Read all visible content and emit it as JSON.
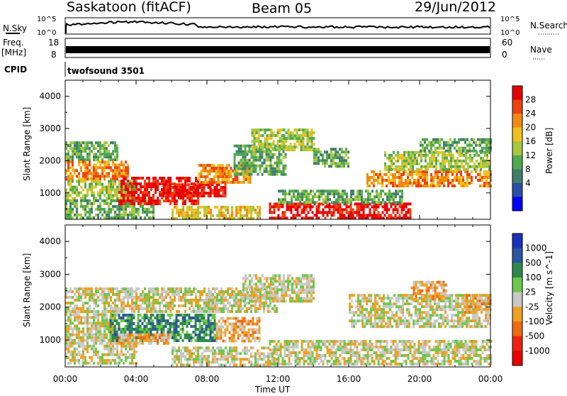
{
  "header": {
    "title": "Saskatoon (fitACF)",
    "beam": "Beam 05",
    "date": "29/Jun/2012"
  },
  "top_strips": {
    "nsky_label": "N.Sky",
    "nsky_ticks": [
      "10^5",
      "10^0"
    ],
    "nsearch_label": "N.Search",
    "nsearch_ticks": [
      "10^5",
      "10^0"
    ],
    "freq_label_line1": "Freq.",
    "freq_label_line2": "[MHz]",
    "freq_ticks": [
      "18",
      "8"
    ],
    "nave_label": "Nave",
    "nave_ticks": [
      "60",
      "0"
    ],
    "cpid_label": "CPID",
    "cpid_value": "twofsound 3501"
  },
  "chart_data": [
    {
      "type": "heatmap",
      "name": "power",
      "ylabel": "Slant Range [km]",
      "yticks": [
        1000,
        2000,
        3000,
        4000
      ],
      "ylim": [
        180,
        4500
      ],
      "xticks": [
        "00:00",
        "04:00",
        "08:00",
        "12:00",
        "16:00",
        "20:00",
        "00:00"
      ],
      "xlim_hours": [
        0,
        24
      ],
      "colorbar": {
        "label": "Power [dB]",
        "tick_labels": [
          "4",
          "8",
          "12",
          "16",
          "20",
          "24",
          "28"
        ],
        "colors": [
          "#0000ff",
          "#2a4fa8",
          "#3f7f6a",
          "#4faa4f",
          "#a8c83c",
          "#f0c020",
          "#f08a10",
          "#f04010",
          "#e80000"
        ]
      },
      "regions": [
        {
          "t0": 0.0,
          "t1": 3.0,
          "r0": 2000,
          "r1": 2600,
          "level": 3
        },
        {
          "t0": 0.0,
          "t1": 3.5,
          "r0": 1400,
          "r1": 2000,
          "level": 6
        },
        {
          "t0": 0.0,
          "t1": 4.0,
          "r0": 800,
          "r1": 1400,
          "level": 4
        },
        {
          "t0": 0.0,
          "t1": 5.0,
          "r0": 200,
          "r1": 800,
          "level": 3
        },
        {
          "t0": 3.0,
          "t1": 7.5,
          "r0": 700,
          "r1": 1500,
          "level": 8
        },
        {
          "t0": 5.5,
          "t1": 9.0,
          "r0": 900,
          "r1": 1300,
          "level": 8
        },
        {
          "t0": 7.5,
          "t1": 10.5,
          "r0": 1300,
          "r1": 1900,
          "level": 6
        },
        {
          "t0": 9.5,
          "t1": 12.5,
          "r0": 1600,
          "r1": 2500,
          "level": 3
        },
        {
          "t0": 10.5,
          "t1": 14.0,
          "r0": 2300,
          "r1": 3000,
          "level": 4
        },
        {
          "t0": 6.0,
          "t1": 11.0,
          "r0": 200,
          "r1": 600,
          "level": 5
        },
        {
          "t0": 11.5,
          "t1": 19.5,
          "r0": 200,
          "r1": 700,
          "level": 8
        },
        {
          "t0": 12.0,
          "t1": 19.0,
          "r0": 700,
          "r1": 1100,
          "level": 3
        },
        {
          "t0": 14.0,
          "t1": 16.0,
          "r0": 1800,
          "r1": 2400,
          "level": 3
        },
        {
          "t0": 17.0,
          "t1": 24.0,
          "r0": 1200,
          "r1": 1700,
          "level": 6
        },
        {
          "t0": 18.0,
          "t1": 24.0,
          "r0": 1700,
          "r1": 2300,
          "level": 4
        },
        {
          "t0": 20.0,
          "t1": 24.0,
          "r0": 2300,
          "r1": 2700,
          "level": 3
        }
      ]
    },
    {
      "type": "heatmap",
      "name": "velocity",
      "ylabel": "Slant Range [km]",
      "yticks": [
        1000,
        2000,
        3000,
        4000
      ],
      "ylim": [
        180,
        4500
      ],
      "xticks": [
        "00:00",
        "04:00",
        "08:00",
        "12:00",
        "16:00",
        "20:00",
        "00:00"
      ],
      "xlim_hours": [
        0,
        24
      ],
      "xlabel": "Time UT",
      "colorbar": {
        "label": "Velocity [m s^-1]",
        "tick_labels": [
          "1000",
          "500",
          "100",
          "25",
          "-25",
          "-100",
          "-500",
          "-1000"
        ],
        "colors": [
          "#1c30c0",
          "#2b55a0",
          "#2f8a4a",
          "#6cc84a",
          "#c8c8c8",
          "#f0a020",
          "#f06a10",
          "#f02010",
          "#e80000"
        ]
      },
      "regions": [
        {
          "t0": 0.0,
          "t1": 12.0,
          "r0": 1900,
          "r1": 2600,
          "level": 4
        },
        {
          "t0": 0.0,
          "t1": 3.0,
          "r0": 1200,
          "r1": 1900,
          "level": 4
        },
        {
          "t0": 0.0,
          "t1": 4.0,
          "r0": 300,
          "r1": 1200,
          "level": 4
        },
        {
          "t0": 2.5,
          "t1": 8.5,
          "r0": 1000,
          "r1": 1800,
          "level": 2
        },
        {
          "t0": 3.0,
          "t1": 6.0,
          "r0": 900,
          "r1": 1200,
          "level": 5
        },
        {
          "t0": 8.5,
          "t1": 11.0,
          "r0": 1000,
          "r1": 1700,
          "level": 5
        },
        {
          "t0": 6.0,
          "t1": 12.0,
          "r0": 200,
          "r1": 800,
          "level": 4
        },
        {
          "t0": 10.0,
          "t1": 14.0,
          "r0": 2200,
          "r1": 3000,
          "level": 4
        },
        {
          "t0": 11.5,
          "t1": 24.0,
          "r0": 300,
          "r1": 1000,
          "level": 4
        },
        {
          "t0": 16.0,
          "t1": 24.0,
          "r0": 1400,
          "r1": 2400,
          "level": 4
        },
        {
          "t0": 19.5,
          "t1": 21.5,
          "r0": 2200,
          "r1": 2800,
          "level": 5
        },
        {
          "t0": 22.5,
          "t1": 24.0,
          "r0": 1800,
          "r1": 2400,
          "level": 5
        }
      ]
    }
  ]
}
